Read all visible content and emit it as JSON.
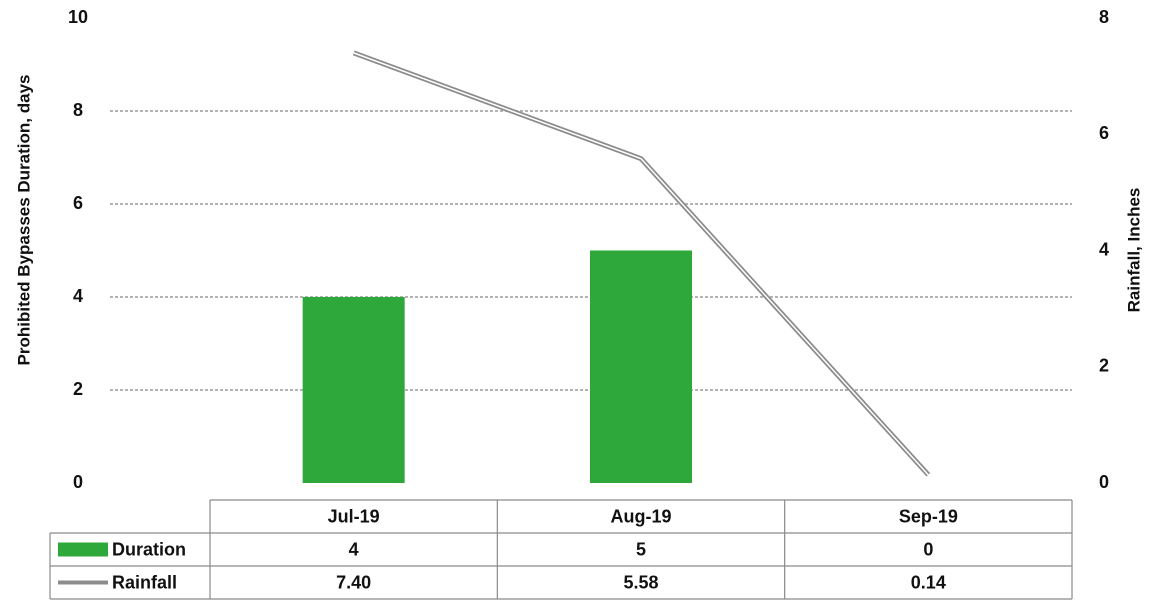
{
  "chart_data": {
    "type": "bar",
    "categories": [
      "Jul-19",
      "Aug-19",
      "Sep-19"
    ],
    "series": [
      {
        "name": "Duration",
        "chart_type": "bar",
        "axis": "left",
        "color": "#2ea83a",
        "values": [
          4,
          5,
          0
        ],
        "table_values": [
          "4",
          "5",
          "0"
        ]
      },
      {
        "name": "Rainfall",
        "chart_type": "line",
        "axis": "right",
        "color": "#8c8c8c",
        "values": [
          7.4,
          5.58,
          0.14
        ],
        "table_values": [
          "7.40",
          "5.58",
          "0.14"
        ]
      }
    ],
    "ylabel": "Prohibited Bypasses Duration, days",
    "ylabel_right": "Rainfall, Inches",
    "ylim": [
      0,
      10
    ],
    "ylim_right": [
      0,
      8
    ],
    "yticks": [
      0,
      2,
      4,
      6,
      8,
      10
    ],
    "yticks_right": [
      0,
      2,
      4,
      6,
      8
    ],
    "grid": true,
    "legend": "data-table"
  }
}
